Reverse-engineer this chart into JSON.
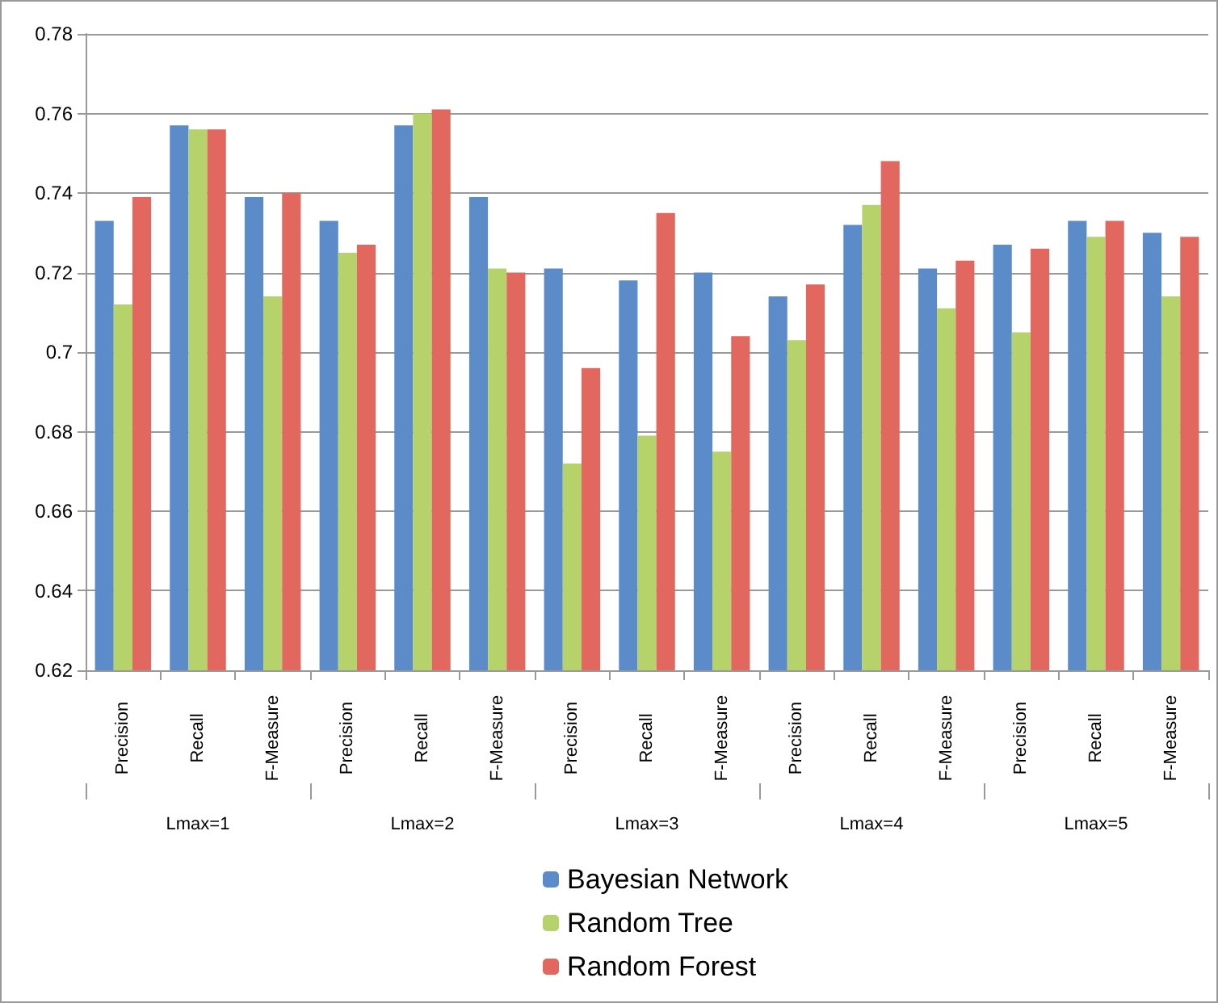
{
  "chart_data": {
    "type": "bar",
    "categories": [
      "Precision",
      "Recall",
      "F-Measure",
      "Precision",
      "Recall",
      "F-Measure",
      "Precision",
      "Recall",
      "F-Measure",
      "Precision",
      "Recall",
      "F-Measure",
      "Precision",
      "Recall",
      "F-Measure"
    ],
    "series": [
      {
        "name": "Bayesian Network",
        "color": "#5b8cc9",
        "values": [
          0.733,
          0.757,
          0.739,
          0.733,
          0.757,
          0.739,
          0.721,
          0.718,
          0.72,
          0.714,
          0.732,
          0.721,
          0.727,
          0.733,
          0.73
        ]
      },
      {
        "name": "Random Tree",
        "color": "#b5d36a",
        "values": [
          0.712,
          0.756,
          0.714,
          0.725,
          0.76,
          0.721,
          0.672,
          0.679,
          0.675,
          0.703,
          0.737,
          0.711,
          0.705,
          0.729,
          0.714
        ]
      },
      {
        "name": "Random Forest",
        "color": "#e2675f",
        "values": [
          0.739,
          0.756,
          0.74,
          0.727,
          0.761,
          0.72,
          0.696,
          0.735,
          0.704,
          0.717,
          0.748,
          0.723,
          0.726,
          0.733,
          0.729
        ]
      }
    ],
    "annotations": [
      "Lmax=1",
      "Lmax=2",
      "Lmax=3",
      "Lmax=4",
      "Lmax=5"
    ],
    "ylim": [
      0.62,
      0.78
    ],
    "yticks": [
      0.62,
      0.64,
      0.66,
      0.68,
      0.7,
      0.72,
      0.74,
      0.76,
      0.78
    ],
    "grid": "y",
    "legend": "bottom"
  }
}
